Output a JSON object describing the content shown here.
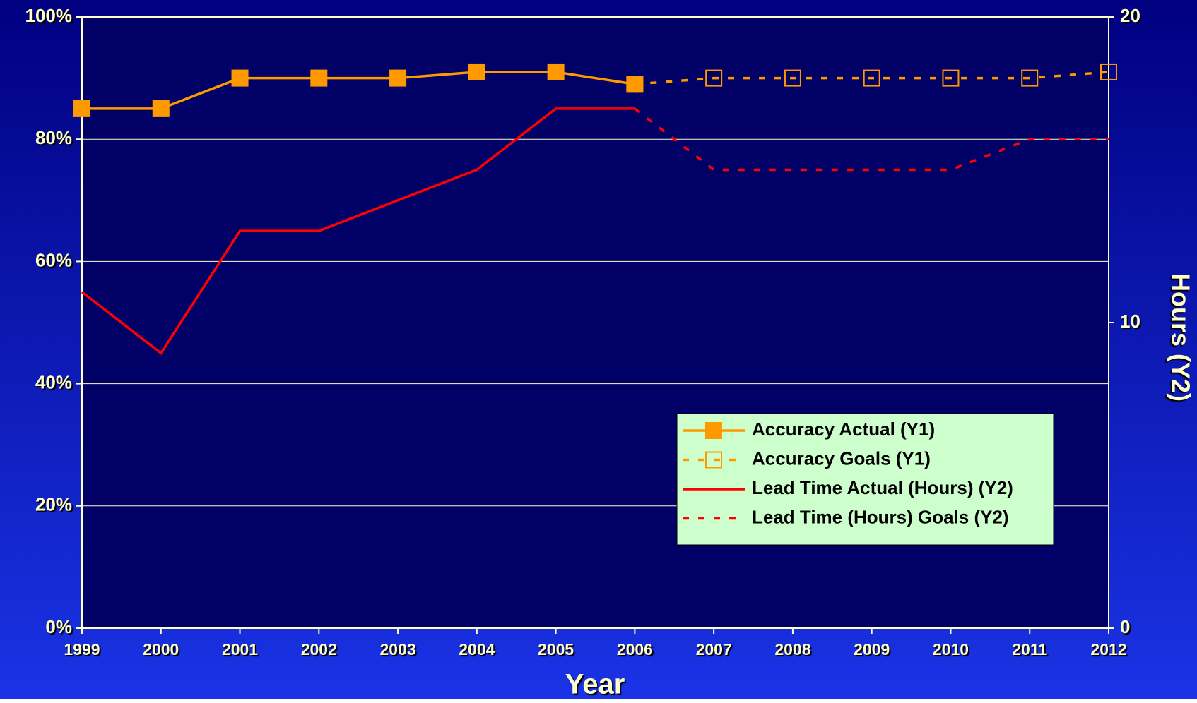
{
  "chart_data": {
    "type": "line",
    "x": [
      1999,
      2000,
      2001,
      2002,
      2003,
      2004,
      2005,
      2006,
      2007,
      2008,
      2009,
      2010,
      2011,
      2012
    ],
    "xlim": [
      1999,
      2012
    ],
    "xticks": [
      1999,
      2000,
      2001,
      2002,
      2003,
      2004,
      2005,
      2006,
      2007,
      2008,
      2009,
      2010,
      2011,
      2012
    ],
    "x_label": "Year",
    "ylim": [
      0,
      100
    ],
    "yticks": [
      {
        "value": 0,
        "label": "0%"
      },
      {
        "value": 20,
        "label": "20%"
      },
      {
        "value": 40,
        "label": "40%"
      },
      {
        "value": 60,
        "label": "60%"
      },
      {
        "value": 80,
        "label": "80%"
      },
      {
        "value": 100,
        "label": "100%"
      }
    ],
    "y2lim": [
      0,
      20
    ],
    "y2ticks": [
      0,
      10,
      20
    ],
    "y2_label": "Hours (Y2)",
    "grid": true,
    "legend": "lower right",
    "series": [
      {
        "name": "Accuracy Actual (Y1)",
        "color": "#ff9900",
        "dash": "solid",
        "marker": "filled-square",
        "values": [
          85,
          85,
          90,
          90,
          90,
          91,
          91,
          89,
          null,
          null,
          null,
          null,
          null,
          null
        ]
      },
      {
        "name": "Accuracy Goals (Y1)",
        "color": "#ff9900",
        "dash": "dotted",
        "marker": "hollow-square",
        "values": [
          null,
          null,
          null,
          null,
          null,
          null,
          null,
          89,
          90,
          90,
          90,
          90,
          90,
          91
        ]
      },
      {
        "name": "Lead Time Actual (Hours) (Y2)",
        "color": "#ff0000",
        "dash": "solid",
        "marker": "none",
        "axis": "y2",
        "values": [
          11,
          9,
          13,
          13,
          14,
          15,
          17,
          17,
          null,
          null,
          null,
          null,
          null,
          null
        ]
      },
      {
        "name": "Lead Time (Hours) Goals (Y2)",
        "color": "#ff0000",
        "dash": "dotted",
        "marker": "none",
        "axis": "y2",
        "values": [
          null,
          null,
          null,
          null,
          null,
          null,
          null,
          17,
          15,
          15,
          15,
          15,
          16,
          16
        ]
      }
    ]
  }
}
